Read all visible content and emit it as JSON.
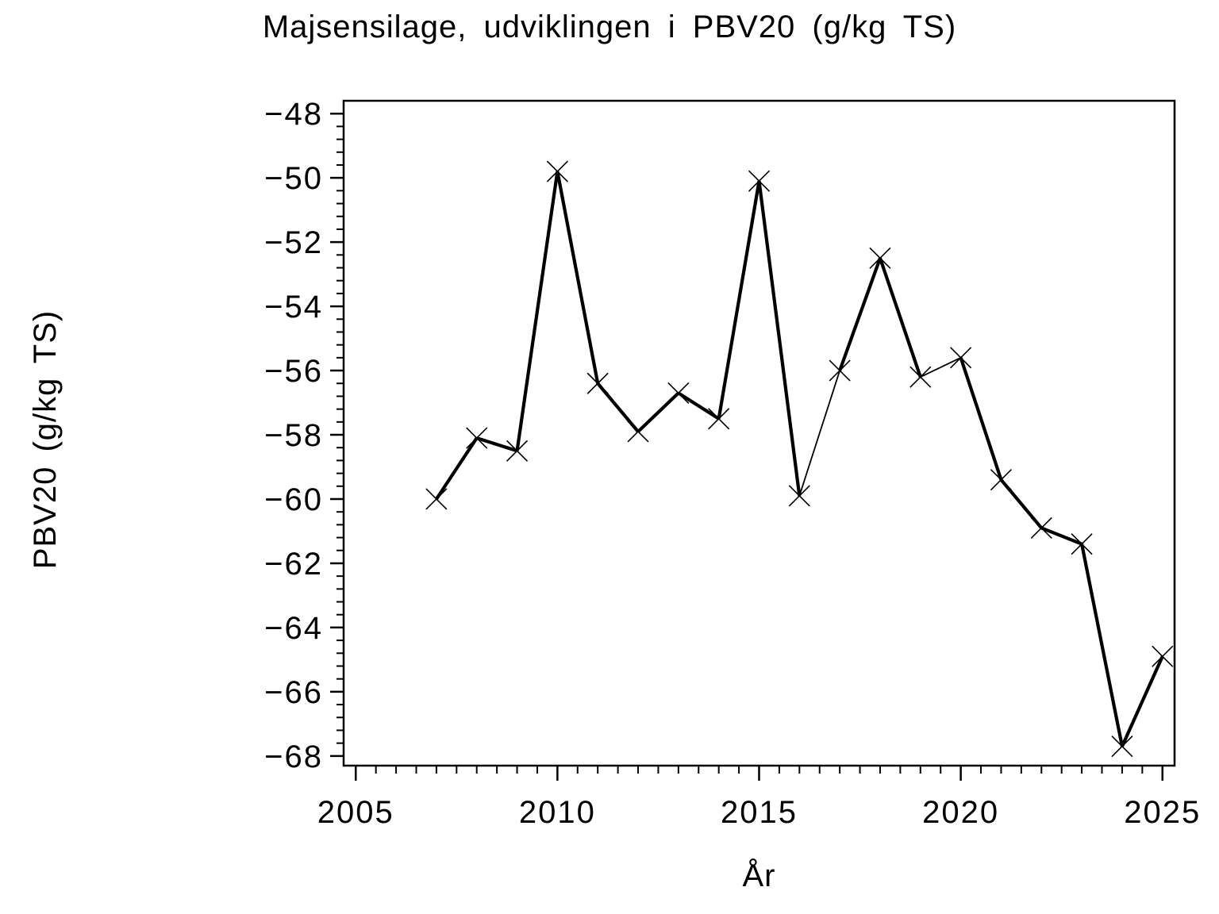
{
  "chart_data": {
    "type": "line",
    "title": "Majsensilage, udviklingen i PBV20 (g/kg TS)",
    "xlabel": "År",
    "ylabel": "PBV20 (g/kg TS)",
    "x": [
      2007,
      2008,
      2009,
      2010,
      2011,
      2012,
      2013,
      2014,
      2015,
      2016,
      2017,
      2018,
      2019,
      2020,
      2021,
      2022,
      2023,
      2024,
      2025
    ],
    "values": [
      -60.0,
      -58.1,
      -58.5,
      -49.8,
      -56.4,
      -57.9,
      -56.7,
      -57.5,
      -50.1,
      -59.9,
      -56.0,
      -52.5,
      -56.2,
      -55.6,
      -59.4,
      -60.9,
      -61.4,
      -67.7,
      -64.9
    ],
    "x_major_ticks": [
      2005,
      2010,
      2015,
      2020,
      2025
    ],
    "x_minor_step": 0.5,
    "y_major_ticks": [
      -48,
      -50,
      -52,
      -54,
      -56,
      -58,
      -60,
      -62,
      -64,
      -66,
      -68
    ],
    "y_minor_step": 0.4,
    "xlim": [
      2004.7,
      2025.3
    ],
    "ylim": [
      -68.3,
      -47.6
    ],
    "marker": "x-cross",
    "line_color": "#000000",
    "background_color": "#ffffff",
    "grid": false,
    "legend": null,
    "thin_segments": [
      [
        2016,
        2017
      ],
      [
        2019,
        2020
      ]
    ]
  }
}
